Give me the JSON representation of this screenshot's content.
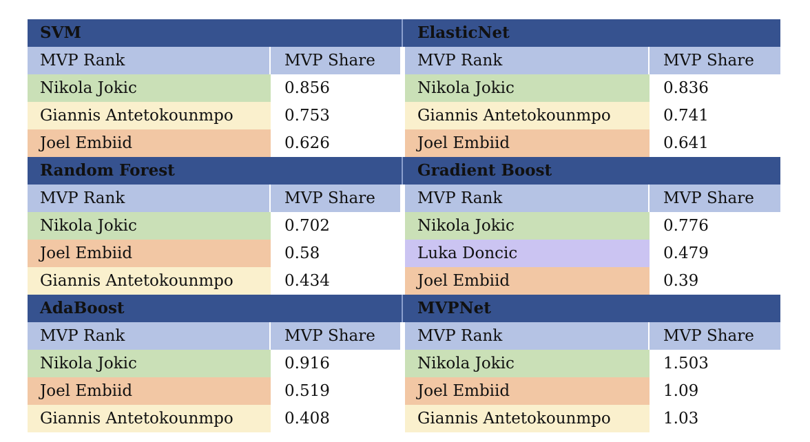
{
  "table": {
    "column_headers": {
      "rank": "MVP Rank",
      "share": "MVP Share"
    },
    "palette": {
      "section_title_bg": "#36528F",
      "section_title_text": "#111111",
      "header_row_bg": "#B5C3E4",
      "divider_line": "#8CA0CE",
      "column_separator": "#FFFFFF",
      "share_cell_bg": "#FFFFFF",
      "page_bg": "#FFFFFF",
      "text": "#111111",
      "player_colors": {
        "Nikola Jokic": "#CAE0B7",
        "Giannis Antetokounmpo": "#FAF0CD",
        "Joel Embiid": "#F2C7A4",
        "Luka Doncic": "#CBC4F2"
      }
    },
    "sections": [
      {
        "title": "SVM",
        "rows": [
          {
            "player": "Nikola Jokic",
            "share": "0.856"
          },
          {
            "player": "Giannis Antetokounmpo",
            "share": "0.753"
          },
          {
            "player": "Joel Embiid",
            "share": "0.626"
          }
        ]
      },
      {
        "title": "ElasticNet",
        "rows": [
          {
            "player": "Nikola Jokic",
            "share": "0.836"
          },
          {
            "player": "Giannis Antetokounmpo",
            "share": "0.741"
          },
          {
            "player": "Joel Embiid",
            "share": "0.641"
          }
        ]
      },
      {
        "title": "Random Forest",
        "rows": [
          {
            "player": "Nikola Jokic",
            "share": "0.702"
          },
          {
            "player": "Joel Embiid",
            "share": "0.58"
          },
          {
            "player": "Giannis Antetokounmpo",
            "share": "0.434"
          }
        ]
      },
      {
        "title": "Gradient Boost",
        "rows": [
          {
            "player": "Nikola Jokic",
            "share": "0.776"
          },
          {
            "player": "Luka Doncic",
            "share": "0.479"
          },
          {
            "player": "Joel Embiid",
            "share": "0.39"
          }
        ]
      },
      {
        "title": "AdaBoost",
        "rows": [
          {
            "player": "Nikola Jokic",
            "share": "0.916"
          },
          {
            "player": "Joel Embiid",
            "share": "0.519"
          },
          {
            "player": "Giannis Antetokounmpo",
            "share": "0.408"
          }
        ]
      },
      {
        "title": "MVPNet",
        "rows": [
          {
            "player": "Nikola Jokic",
            "share": "1.503"
          },
          {
            "player": "Joel Embiid",
            "share": "1.09"
          },
          {
            "player": "Giannis Antetokounmpo",
            "share": "1.03"
          }
        ]
      }
    ]
  },
  "chart_data": {
    "type": "table",
    "tables": [
      {
        "model": "SVM",
        "columns": [
          "MVP Rank",
          "MVP Share"
        ],
        "rows": [
          [
            "Nikola Jokic",
            0.856
          ],
          [
            "Giannis Antetokounmpo",
            0.753
          ],
          [
            "Joel Embiid",
            0.626
          ]
        ]
      },
      {
        "model": "ElasticNet",
        "columns": [
          "MVP Rank",
          "MVP Share"
        ],
        "rows": [
          [
            "Nikola Jokic",
            0.836
          ],
          [
            "Giannis Antetokounmpo",
            0.741
          ],
          [
            "Joel Embiid",
            0.641
          ]
        ]
      },
      {
        "model": "Random Forest",
        "columns": [
          "MVP Rank",
          "MVP Share"
        ],
        "rows": [
          [
            "Nikola Jokic",
            0.702
          ],
          [
            "Joel Embiid",
            0.58
          ],
          [
            "Giannis Antetokounmpo",
            0.434
          ]
        ]
      },
      {
        "model": "Gradient Boost",
        "columns": [
          "MVP Rank",
          "MVP Share"
        ],
        "rows": [
          [
            "Nikola Jokic",
            0.776
          ],
          [
            "Luka Doncic",
            0.479
          ],
          [
            "Joel Embiid",
            0.39
          ]
        ]
      },
      {
        "model": "AdaBoost",
        "columns": [
          "MVP Rank",
          "MVP Share"
        ],
        "rows": [
          [
            "Nikola Jokic",
            0.916
          ],
          [
            "Joel Embiid",
            0.519
          ],
          [
            "Giannis Antetokounmpo",
            0.408
          ]
        ]
      },
      {
        "model": "MVPNet",
        "columns": [
          "MVP Rank",
          "MVP Share"
        ],
        "rows": [
          [
            "Nikola Jokic",
            1.503
          ],
          [
            "Joel Embiid",
            1.09
          ],
          [
            "Giannis Antetokounmpo",
            1.03
          ]
        ]
      }
    ]
  }
}
